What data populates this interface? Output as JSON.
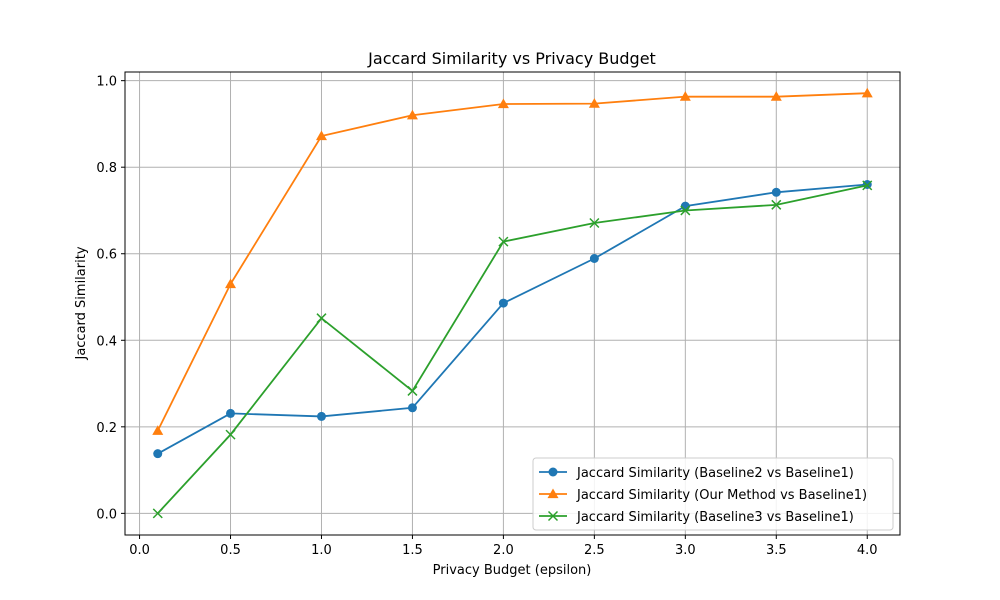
{
  "chart_data": {
    "type": "line",
    "title": "Jaccard Similarity vs Privacy Budget",
    "xlabel": "Privacy Budget (epsilon)",
    "ylabel": "Jaccard Similarity",
    "xlim": [
      -0.08,
      4.18
    ],
    "ylim": [
      -0.05,
      1.02
    ],
    "xticks": [
      "0.0",
      "0.5",
      "1.0",
      "1.5",
      "2.0",
      "2.5",
      "3.0",
      "3.5",
      "4.0"
    ],
    "yticks": [
      "0.0",
      "0.2",
      "0.4",
      "0.6",
      "0.8",
      "1.0"
    ],
    "grid": true,
    "legend_position": "lower-right",
    "x": [
      0.1,
      0.5,
      1.0,
      1.5,
      2.0,
      2.5,
      3.0,
      3.5,
      4.0
    ],
    "series": [
      {
        "name": "Jaccard Similarity (Baseline2 vs Baseline1)",
        "color": "#1f77b4",
        "marker": "circle",
        "values": [
          0.138,
          0.231,
          0.224,
          0.244,
          0.486,
          0.589,
          0.71,
          0.742,
          0.76
        ]
      },
      {
        "name": "Jaccard Similarity (Our Method vs Baseline1)",
        "color": "#ff7f0e",
        "marker": "triangle",
        "values": [
          0.191,
          0.53,
          0.872,
          0.92,
          0.946,
          0.947,
          0.963,
          0.963,
          0.971
        ]
      },
      {
        "name": "Jaccard Similarity (Baseline3 vs Baseline1)",
        "color": "#2ca02c",
        "marker": "x",
        "values": [
          0.0,
          0.182,
          0.451,
          0.283,
          0.628,
          0.671,
          0.7,
          0.713,
          0.758
        ]
      }
    ]
  }
}
